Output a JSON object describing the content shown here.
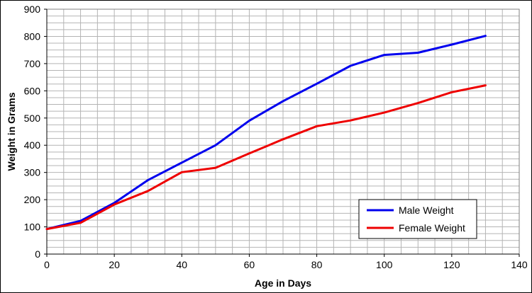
{
  "chart_data": {
    "type": "line",
    "xlabel": "Age in Days",
    "ylabel": "Weight in Grams",
    "xlim": [
      0,
      140
    ],
    "ylim": [
      0,
      900
    ],
    "x_ticks": [
      "0",
      "20",
      "40",
      "60",
      "80",
      "100",
      "120",
      "140"
    ],
    "y_ticks": [
      "0",
      "100",
      "200",
      "300",
      "400",
      "500",
      "600",
      "700",
      "800",
      "900"
    ],
    "grid": true,
    "legend_position": "bottom-right",
    "x": [
      0,
      10,
      20,
      30,
      40,
      50,
      60,
      70,
      80,
      90,
      100,
      110,
      120,
      130
    ],
    "series": [
      {
        "name": "Male Weight",
        "color": "#0000ee",
        "values": [
          92,
          122,
          188,
          272,
          336,
          400,
          490,
          562,
          626,
          692,
          732,
          740,
          770,
          802
        ]
      },
      {
        "name": "Female Weight",
        "color": "#ee0000",
        "values": [
          92,
          115,
          182,
          232,
          301,
          317,
          370,
          422,
          470,
          491,
          520,
          555,
          595,
          620
        ]
      }
    ]
  }
}
